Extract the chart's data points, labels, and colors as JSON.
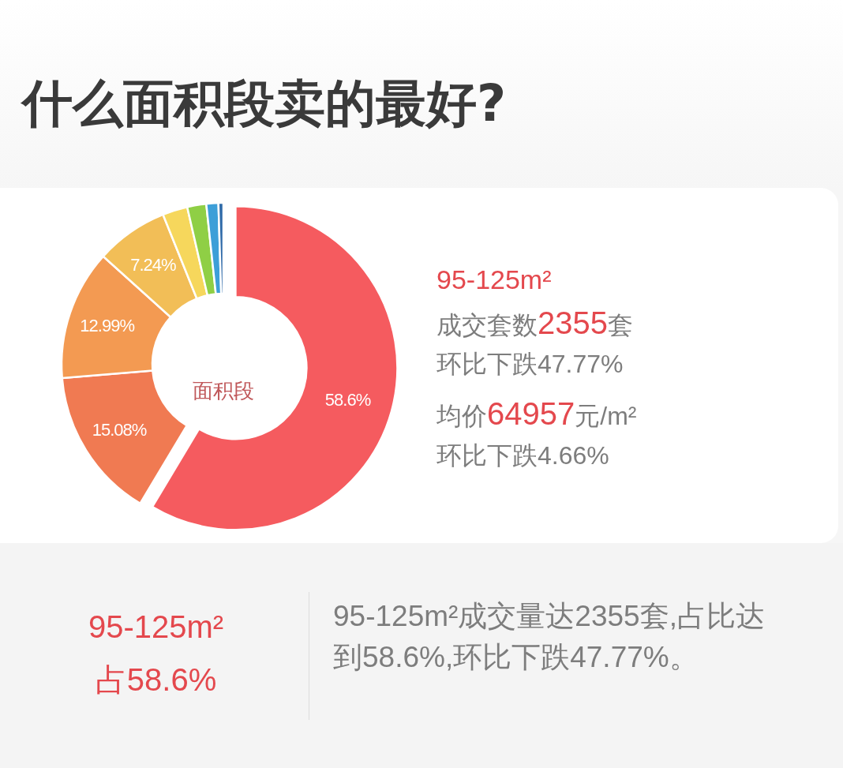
{
  "chart_data": {
    "type": "donut",
    "title": "什么面积段卖的最好?",
    "categories": [
      null,
      null,
      null,
      null,
      null,
      null,
      null,
      null
    ],
    "values": [
      58.6,
      15.08,
      12.99,
      7.24,
      2.5,
      1.9,
      1.2,
      0.49
    ],
    "colors": [
      "#f55b5f",
      "#f07a52",
      "#f39a52",
      "#f2be57",
      "#f6d75c",
      "#8fcf45",
      "#3d9fd8",
      "#2f6aa8"
    ],
    "value_labels": [
      "58.6%",
      "15.08%",
      "12.99%",
      "7.24%",
      null,
      null,
      null,
      null
    ],
    "annotations": [
      "面积段",
      "95-125m²",
      "成交套数",
      "2355",
      "套",
      "环比下跌47.77%",
      "均价",
      "64957",
      "元/m²",
      "环比下跌4.66%",
      "95-125m²",
      "占58.6%",
      "95-125m²成交量达2355套,占比达到58.6%,环比下跌47.77%。"
    ]
  }
}
